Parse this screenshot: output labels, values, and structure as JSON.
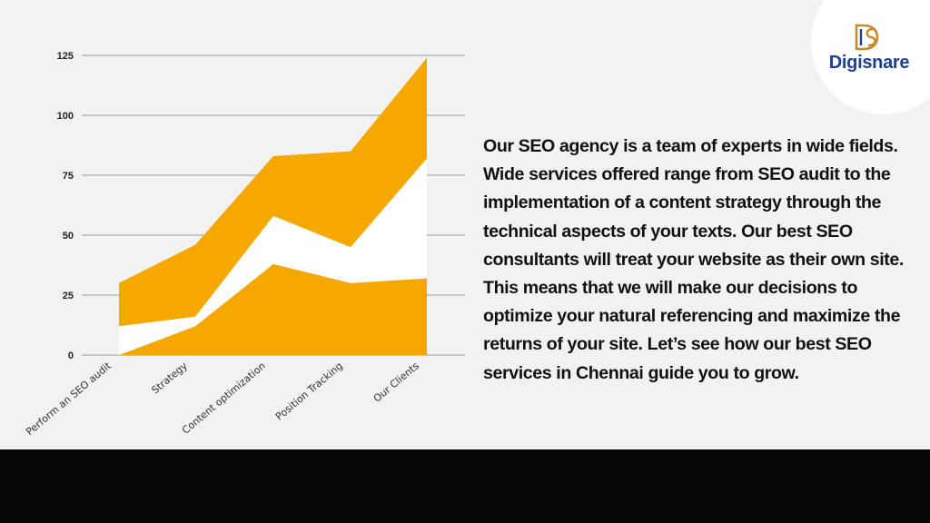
{
  "brand": {
    "name": "Digisnare",
    "colors": {
      "navy": "#1f3f8f",
      "gold": "#c9892b"
    }
  },
  "paragraph": "Our SEO agency is a team of experts in wide fields. Wide services offered range from SEO audit to the implementation of a content strategy through the technical aspects of your texts. Our best SEO consultants will treat your website as their own site. This means that we will make our decisions to optimize your natural referencing and maximize the returns of your site. Let’s see how our best SEO services in Chennai guide you to grow.",
  "chart_data": {
    "type": "area",
    "stacked": true,
    "title": "",
    "xlabel": "",
    "ylabel": "",
    "categories": [
      "Perform an SEO audit",
      "Strategy",
      "Content optimization",
      "Position Tracking",
      "Our Clients"
    ],
    "ylim": [
      0,
      125
    ],
    "yticks": [
      0,
      25,
      50,
      75,
      100,
      125
    ],
    "grid": true,
    "legend": "none",
    "series": [
      {
        "values": [
          0,
          12,
          38,
          30,
          32
        ],
        "color": "#f5a800"
      },
      {
        "values": [
          12,
          4,
          20,
          15,
          50
        ],
        "color": "#ffffff"
      },
      {
        "values": [
          18,
          30,
          25,
          40,
          42
        ],
        "color": "#f5a800"
      }
    ]
  }
}
